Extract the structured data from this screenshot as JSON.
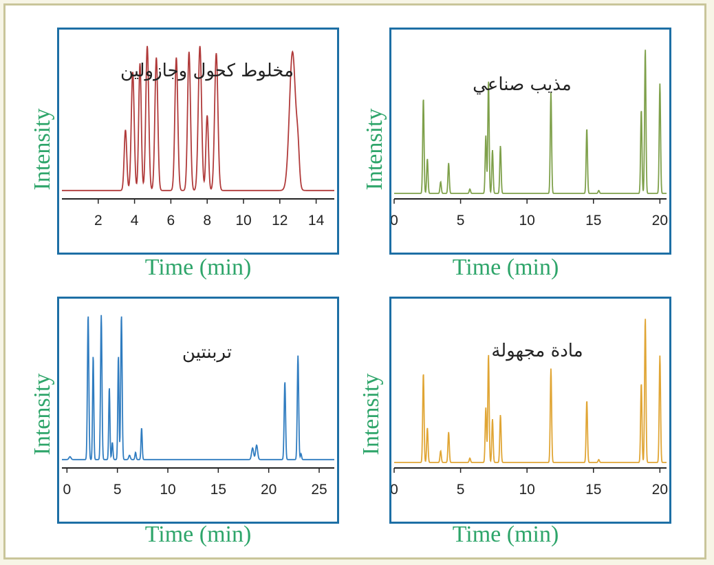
{
  "chart_data": [
    {
      "type": "line",
      "title": "مخلوط كحول وجازولين",
      "xlabel": "Time (min)",
      "ylabel": "Intensity",
      "xlim": [
        0,
        15
      ],
      "xticks": [
        2,
        4,
        6,
        8,
        10,
        12,
        14
      ],
      "color": "#b03a3a",
      "baseline": 0.02,
      "peaks": [
        {
          "x": 3.5,
          "y": 0.42,
          "w": 0.07
        },
        {
          "x": 3.9,
          "y": 0.82,
          "w": 0.08
        },
        {
          "x": 4.3,
          "y": 0.88,
          "w": 0.07
        },
        {
          "x": 4.7,
          "y": 1.0,
          "w": 0.08
        },
        {
          "x": 5.2,
          "y": 0.92,
          "w": 0.08
        },
        {
          "x": 6.3,
          "y": 0.92,
          "w": 0.08
        },
        {
          "x": 7.0,
          "y": 0.96,
          "w": 0.08
        },
        {
          "x": 7.6,
          "y": 1.0,
          "w": 0.09
        },
        {
          "x": 8.0,
          "y": 0.52,
          "w": 0.07
        },
        {
          "x": 8.5,
          "y": 0.95,
          "w": 0.09
        },
        {
          "x": 12.7,
          "y": 0.96,
          "w": 0.17
        },
        {
          "x": 13.0,
          "y": 0.2,
          "w": 0.08
        }
      ]
    },
    {
      "type": "line",
      "title": "مذيب صناعي",
      "xlabel": "Time (min)",
      "ylabel": "Intensity",
      "xlim": [
        0,
        20.5
      ],
      "xticks": [
        0,
        5,
        10,
        15,
        20
      ],
      "color": "#7ea04a",
      "baseline": 0.0,
      "peaks": [
        {
          "x": 2.2,
          "y": 0.66,
          "w": 0.05
        },
        {
          "x": 2.5,
          "y": 0.24,
          "w": 0.05
        },
        {
          "x": 3.5,
          "y": 0.08,
          "w": 0.05
        },
        {
          "x": 4.1,
          "y": 0.21,
          "w": 0.05
        },
        {
          "x": 5.7,
          "y": 0.03,
          "w": 0.05
        },
        {
          "x": 6.9,
          "y": 0.4,
          "w": 0.05
        },
        {
          "x": 7.1,
          "y": 0.78,
          "w": 0.05
        },
        {
          "x": 7.4,
          "y": 0.3,
          "w": 0.05
        },
        {
          "x": 8.0,
          "y": 0.33,
          "w": 0.05
        },
        {
          "x": 11.8,
          "y": 0.7,
          "w": 0.05
        },
        {
          "x": 14.5,
          "y": 0.45,
          "w": 0.05
        },
        {
          "x": 15.4,
          "y": 0.02,
          "w": 0.05
        },
        {
          "x": 18.6,
          "y": 0.58,
          "w": 0.05
        },
        {
          "x": 18.9,
          "y": 1.0,
          "w": 0.05
        },
        {
          "x": 20.0,
          "y": 0.76,
          "w": 0.05
        }
      ]
    },
    {
      "type": "line",
      "title": "تربنتين",
      "xlabel": "Time (min)",
      "ylabel": "Intensity",
      "xlim": [
        -0.5,
        26.5
      ],
      "xticks": [
        0,
        5,
        10,
        15,
        20,
        25
      ],
      "color": "#2f7cc0",
      "baseline": 0.02,
      "peaks": [
        {
          "x": 0.3,
          "y": 0.02,
          "w": 0.1
        },
        {
          "x": 2.1,
          "y": 1.0,
          "w": 0.07
        },
        {
          "x": 2.6,
          "y": 0.72,
          "w": 0.06
        },
        {
          "x": 3.4,
          "y": 1.0,
          "w": 0.07
        },
        {
          "x": 4.2,
          "y": 0.5,
          "w": 0.06
        },
        {
          "x": 4.5,
          "y": 0.12,
          "w": 0.06
        },
        {
          "x": 5.1,
          "y": 0.72,
          "w": 0.06
        },
        {
          "x": 5.4,
          "y": 1.0,
          "w": 0.07
        },
        {
          "x": 6.2,
          "y": 0.03,
          "w": 0.08
        },
        {
          "x": 6.8,
          "y": 0.05,
          "w": 0.06
        },
        {
          "x": 7.4,
          "y": 0.22,
          "w": 0.06
        },
        {
          "x": 18.4,
          "y": 0.08,
          "w": 0.1
        },
        {
          "x": 18.8,
          "y": 0.1,
          "w": 0.1
        },
        {
          "x": 21.6,
          "y": 0.54,
          "w": 0.07
        },
        {
          "x": 22.9,
          "y": 0.72,
          "w": 0.07
        },
        {
          "x": 23.2,
          "y": 0.04,
          "w": 0.06
        }
      ]
    },
    {
      "type": "line",
      "title": "مادة مجهولة",
      "xlabel": "Time (min)",
      "ylabel": "Intensity",
      "xlim": [
        0,
        20.5
      ],
      "xticks": [
        0,
        5,
        10,
        15,
        20
      ],
      "color": "#e0a534",
      "baseline": 0.0,
      "peaks": [
        {
          "x": 2.2,
          "y": 0.62,
          "w": 0.05
        },
        {
          "x": 2.5,
          "y": 0.24,
          "w": 0.05
        },
        {
          "x": 3.5,
          "y": 0.08,
          "w": 0.05
        },
        {
          "x": 4.1,
          "y": 0.21,
          "w": 0.05
        },
        {
          "x": 5.7,
          "y": 0.03,
          "w": 0.05
        },
        {
          "x": 6.9,
          "y": 0.38,
          "w": 0.05
        },
        {
          "x": 7.1,
          "y": 0.75,
          "w": 0.05
        },
        {
          "x": 7.4,
          "y": 0.3,
          "w": 0.05
        },
        {
          "x": 8.0,
          "y": 0.33,
          "w": 0.05
        },
        {
          "x": 11.8,
          "y": 0.65,
          "w": 0.05
        },
        {
          "x": 14.5,
          "y": 0.43,
          "w": 0.05
        },
        {
          "x": 15.4,
          "y": 0.02,
          "w": 0.05
        },
        {
          "x": 18.6,
          "y": 0.55,
          "w": 0.05
        },
        {
          "x": 18.9,
          "y": 1.0,
          "w": 0.05
        },
        {
          "x": 20.0,
          "y": 0.74,
          "w": 0.05
        }
      ]
    }
  ]
}
